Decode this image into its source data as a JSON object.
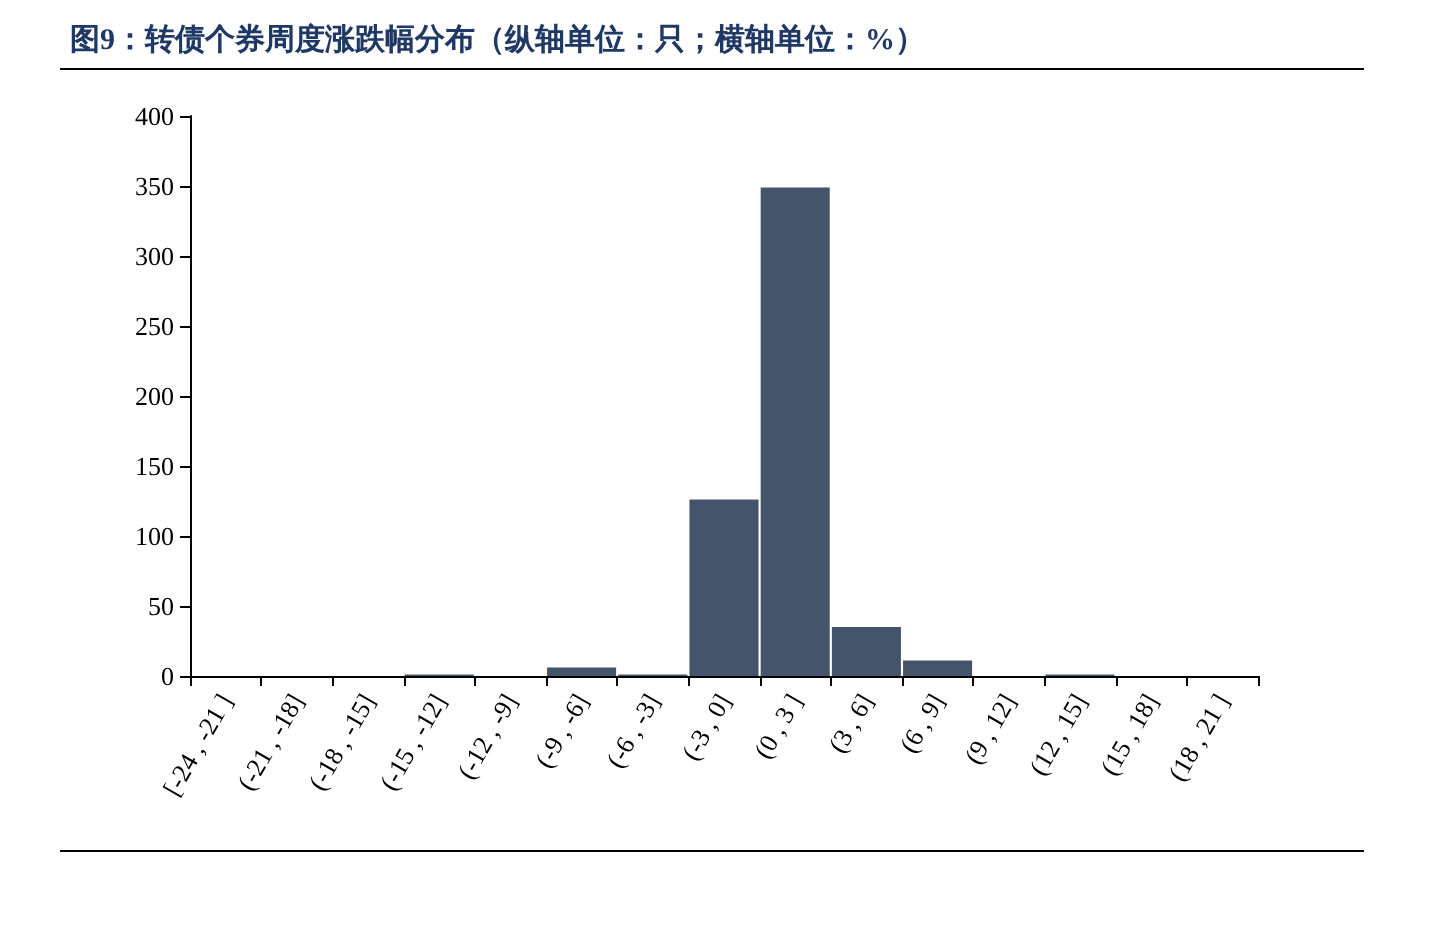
{
  "chart_data": {
    "type": "bar",
    "title": "图9：转债个券周度涨跌幅分布（纵轴单位：只；横轴单位：%）",
    "categories": [
      "[-24 , -21 ]",
      "(-21 , -18]",
      "(-18 , -15]",
      "(-15 , -12]",
      "(-12 , -9]",
      "(-9 , -6]",
      "(-6 , -3]",
      "(-3 , 0]",
      "(0 , 3 ]",
      "(3 , 6]",
      "(6 , 9]",
      "(9 , 12]",
      "(12 , 15]",
      "(15 , 18]",
      "(18 , 21 ]"
    ],
    "values": [
      0,
      0,
      0,
      1,
      0,
      6,
      1,
      126,
      349,
      35,
      11,
      0,
      1,
      0,
      0
    ],
    "color": "#44546a",
    "ylim": [
      0,
      400
    ],
    "yticks": [
      0,
      50,
      100,
      150,
      200,
      250,
      300,
      350,
      400
    ],
    "grid": false
  }
}
